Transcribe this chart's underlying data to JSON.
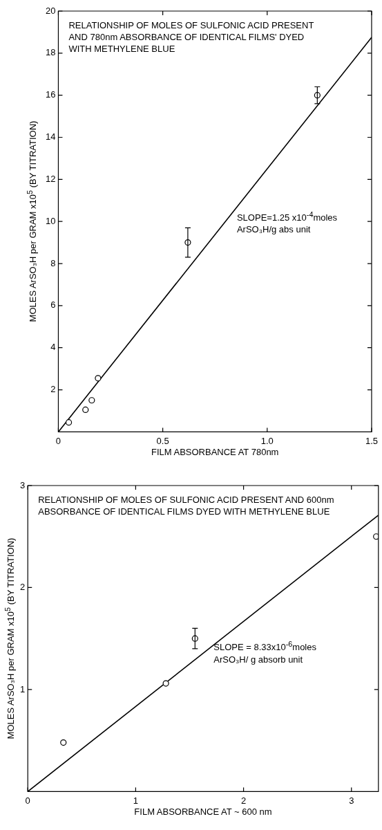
{
  "chart_data": [
    {
      "type": "scatter",
      "title": "RELATIONSHIP OF MOLES OF SULFONIC ACID PRESENT AND 780nm ABSORBANCE OF IDENTICAL FILMS' DYED WITH METHYLENE BLUE",
      "xlabel": "FILM ABSORBANCE AT 780nm",
      "ylabel": "MOLES ArSO₃H per GRAM x10$^{5}$ (BY TITRATION)",
      "annotations": [
        "SLOPE=1.25 x10$^{-4}$moles ArSO₃H/g abs unit"
      ],
      "xlim": [
        0,
        1.5
      ],
      "ylim": [
        0,
        20
      ],
      "xticks": [
        0,
        0.5,
        {
          "value": 1,
          "label": "1.0"
        },
        1.5
      ],
      "yticks": [
        2,
        4,
        6,
        8,
        10,
        12,
        14,
        16,
        18,
        20
      ],
      "grid": false,
      "legend": false,
      "series": [
        {
          "marker": "circle",
          "color": "#000000",
          "x": [
            0.05,
            0.13,
            0.16,
            0.19,
            0.62,
            1.24
          ],
          "values": [
            0.45,
            1.05,
            1.5,
            2.55,
            9.0,
            16.0
          ],
          "errors": [
            null,
            null,
            null,
            null,
            0.7,
            0.4
          ]
        },
        {
          "type": "line",
          "marker": "none",
          "color": "#000000",
          "x": [
            0,
            1.5
          ],
          "values": [
            0,
            18.75
          ]
        }
      ]
    },
    {
      "type": "scatter",
      "title": "RELATIONSHIP OF MOLES OF SULFONIC ACID PRESENT AND 600nm ABSORBANCE OF IDENTICAL FILMS DYED WITH METHYLENE BLUE",
      "xlabel": "FILM ABSORBANCE AT ~ 600 nm",
      "ylabel": "MOLES ArSO₃H per GRAM x10$^{5}$ (BY TITRATION)",
      "annotations": [
        "SLOPE = 8.33x10$^{-6}$moles ArSO₃H/ g absorb unit"
      ],
      "xlim": [
        0,
        3.25
      ],
      "ylim": [
        0,
        3
      ],
      "xticks": [
        0,
        1,
        2,
        3
      ],
      "yticks": [
        1,
        2,
        3
      ],
      "grid": false,
      "legend": false,
      "series": [
        {
          "marker": "circle",
          "color": "#000000",
          "x": [
            0.33,
            1.28,
            1.55,
            3.23
          ],
          "values": [
            0.48,
            1.06,
            1.5,
            2.5
          ],
          "errors": [
            null,
            null,
            0.1,
            null
          ]
        },
        {
          "type": "line",
          "marker": "none",
          "color": "#000000",
          "x": [
            0,
            3.25
          ],
          "values": [
            0,
            2.71
          ]
        }
      ]
    }
  ]
}
